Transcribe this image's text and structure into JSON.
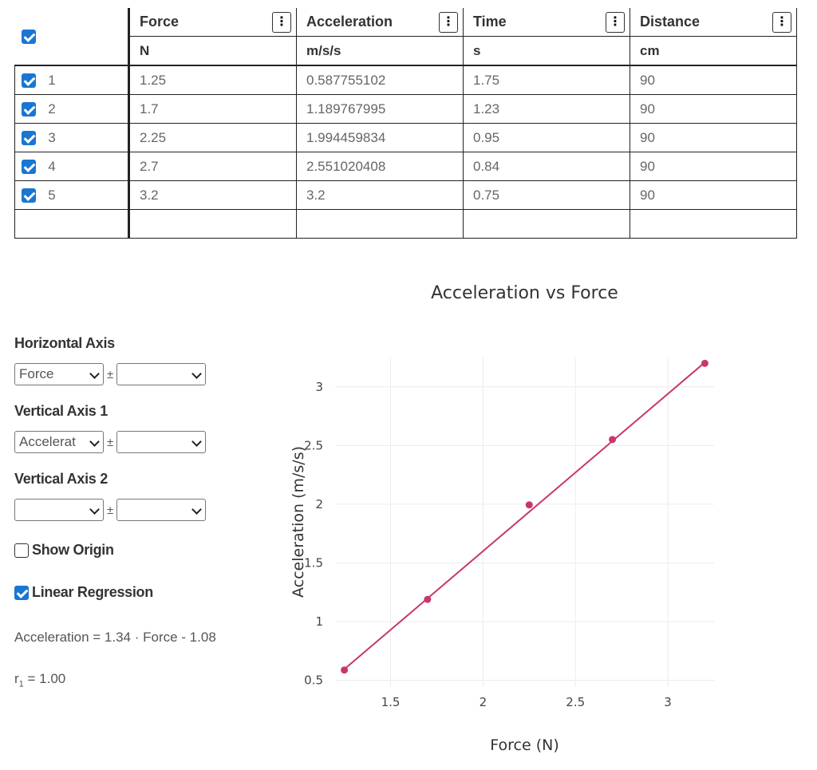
{
  "table": {
    "columns": [
      {
        "name": "Force",
        "unit": "N"
      },
      {
        "name": "Acceleration",
        "unit": "m/s/s"
      },
      {
        "name": "Time",
        "unit": "s"
      },
      {
        "name": "Distance",
        "unit": "cm"
      }
    ],
    "menu_glyph": "⋮",
    "rows": [
      {
        "num": "1",
        "values": [
          "1.25",
          "0.587755102",
          "1.75",
          "90"
        ]
      },
      {
        "num": "2",
        "values": [
          "1.7",
          "1.189767995",
          "1.23",
          "90"
        ]
      },
      {
        "num": "3",
        "values": [
          "2.25",
          "1.994459834",
          "0.95",
          "90"
        ]
      },
      {
        "num": "4",
        "values": [
          "2.7",
          "2.551020408",
          "0.84",
          "90"
        ]
      },
      {
        "num": "5",
        "values": [
          "3.2",
          "3.2",
          "0.75",
          "90"
        ]
      }
    ]
  },
  "controls": {
    "horizontal_axis": {
      "label": "Horizontal Axis",
      "selected": "Force",
      "error_selected": ""
    },
    "vertical_axis_1": {
      "label": "Vertical Axis 1",
      "selected": "Accelerat",
      "error_selected": ""
    },
    "vertical_axis_2": {
      "label": "Vertical Axis 2",
      "selected": "",
      "error_selected": ""
    },
    "plus_minus": "±",
    "show_origin": {
      "label": "Show Origin",
      "checked": false
    },
    "linear_regression": {
      "label": "Linear Regression",
      "checked": true
    },
    "equation": "Acceleration = 1.34 · Force - 1.08",
    "r_prefix": "r",
    "r_sub": "1",
    "r_value": " = 1.00"
  },
  "colors": {
    "series": "#c9366e",
    "checkbox": "#1976d2",
    "grid": "#ececec"
  },
  "chart_data": {
    "type": "scatter",
    "title": "Acceleration vs Force",
    "xlabel": "Force (N)",
    "ylabel": "Acceleration (m/s/s)",
    "xlim": [
      1.2,
      3.25
    ],
    "ylim": [
      0.45,
      3.25
    ],
    "xticks": [
      "1.5",
      "2",
      "2.5",
      "3"
    ],
    "yticks": [
      "0.5",
      "1",
      "1.5",
      "2",
      "2.5",
      "3"
    ],
    "grid": true,
    "series": [
      {
        "x": [
          1.25,
          1.7,
          2.25,
          2.7,
          3.2
        ],
        "y": [
          0.587755102,
          1.189767995,
          1.994459834,
          2.551020408,
          3.2
        ]
      }
    ],
    "regression": {
      "slope": 1.34,
      "intercept": -1.08,
      "shown": true
    }
  }
}
